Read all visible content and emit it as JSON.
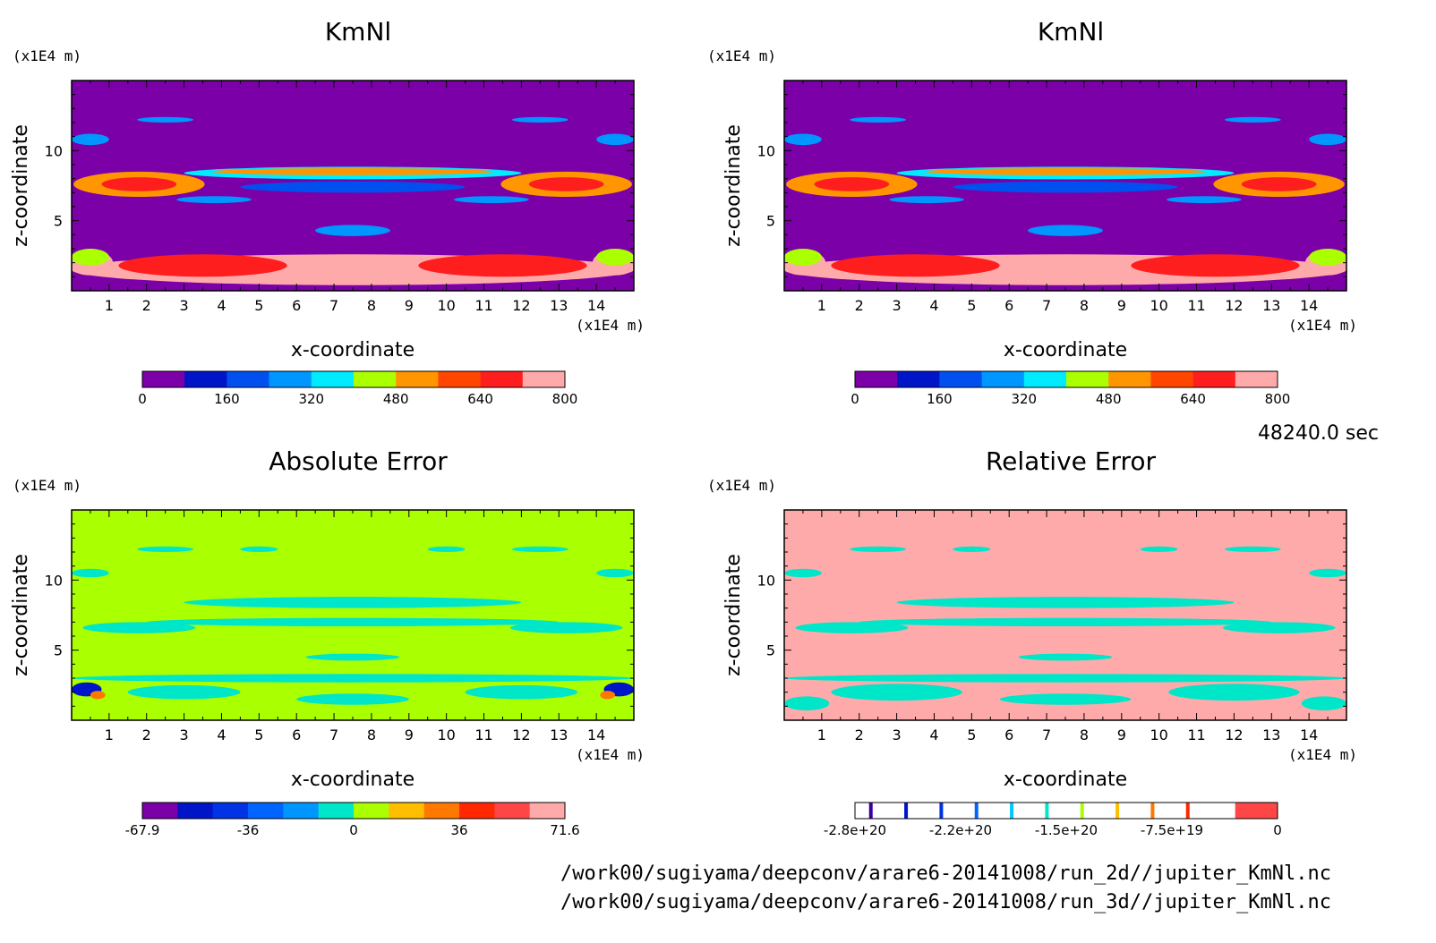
{
  "time_label": "48240.0 sec",
  "file_paths": [
    "/work00/sugiyama/deepconv/arare6-20141008/run_2d//jupiter_KmNl.nc",
    "/work00/sugiyama/deepconv/arare6-20141008/run_3d//jupiter_KmNl.nc"
  ],
  "chart_data": [
    {
      "type": "heatmap",
      "title": "KmNl",
      "xlabel": "x-coordinate",
      "ylabel": "z-coordinate",
      "x_unit": "(x1E4 m)",
      "y_unit": "(x1E4 m)",
      "xlim": [
        0,
        15
      ],
      "ylim": [
        0,
        15
      ],
      "x_ticks": [
        "1",
        "2",
        "3",
        "4",
        "5",
        "6",
        "7",
        "8",
        "9",
        "10",
        "11",
        "12",
        "13",
        "14"
      ],
      "y_ticks": [
        "5",
        "10"
      ],
      "background_color": "#7b00a8",
      "colorbar": {
        "colors": [
          "#7b00a8",
          "#0014c8",
          "#0050f0",
          "#0096ff",
          "#00ebff",
          "#aaff00",
          "#ff9600",
          "#ff4600",
          "#ff1e1e",
          "#ffaaaa"
        ],
        "tick_labels": [
          "0",
          "160",
          "320",
          "480",
          "640",
          "800"
        ]
      },
      "features": [
        {
          "x": 0.5,
          "y": 2.0,
          "w": 1.2,
          "h": 1.8,
          "level": 9
        },
        {
          "x": 14.5,
          "y": 2.0,
          "w": 1.2,
          "h": 1.8,
          "level": 9
        },
        {
          "x": 7.5,
          "y": 1.5,
          "w": 15,
          "h": 2.2,
          "level": 9
        },
        {
          "x": 3.5,
          "y": 1.8,
          "w": 4.5,
          "h": 1.6,
          "level": 8
        },
        {
          "x": 11.5,
          "y": 1.8,
          "w": 4.5,
          "h": 1.6,
          "level": 8
        },
        {
          "x": 0.5,
          "y": 2.4,
          "w": 1.0,
          "h": 1.2,
          "level": 5
        },
        {
          "x": 14.5,
          "y": 2.4,
          "w": 1.0,
          "h": 1.2,
          "level": 5
        },
        {
          "x": 1.8,
          "y": 7.6,
          "w": 3.5,
          "h": 1.8,
          "level": 6
        },
        {
          "x": 13.2,
          "y": 7.6,
          "w": 3.5,
          "h": 1.8,
          "level": 6
        },
        {
          "x": 1.8,
          "y": 7.6,
          "w": 2.0,
          "h": 1.0,
          "level": 8
        },
        {
          "x": 13.2,
          "y": 7.6,
          "w": 2.0,
          "h": 1.0,
          "level": 8
        },
        {
          "x": 7.5,
          "y": 8.4,
          "w": 9.0,
          "h": 0.9,
          "level": 4
        },
        {
          "x": 7.5,
          "y": 8.5,
          "w": 7.5,
          "h": 0.5,
          "level": 6
        },
        {
          "x": 7.5,
          "y": 7.4,
          "w": 6.0,
          "h": 0.8,
          "level": 2
        },
        {
          "x": 7.5,
          "y": 4.3,
          "w": 2.0,
          "h": 0.8,
          "level": 3
        },
        {
          "x": 3.8,
          "y": 6.5,
          "w": 2.0,
          "h": 0.5,
          "level": 3
        },
        {
          "x": 11.2,
          "y": 6.5,
          "w": 2.0,
          "h": 0.5,
          "level": 3
        },
        {
          "x": 2.5,
          "y": 12.2,
          "w": 1.5,
          "h": 0.4,
          "level": 3
        },
        {
          "x": 12.5,
          "y": 12.2,
          "w": 1.5,
          "h": 0.4,
          "level": 3
        },
        {
          "x": 0.5,
          "y": 10.8,
          "w": 1.0,
          "h": 0.8,
          "level": 3
        },
        {
          "x": 14.5,
          "y": 10.8,
          "w": 1.0,
          "h": 0.8,
          "level": 3
        }
      ]
    },
    {
      "type": "heatmap",
      "title": "KmNl",
      "xlabel": "x-coordinate",
      "ylabel": "z-coordinate",
      "x_unit": "(x1E4 m)",
      "y_unit": "(x1E4 m)",
      "xlim": [
        0,
        15
      ],
      "ylim": [
        0,
        15
      ],
      "x_ticks": [
        "1",
        "2",
        "3",
        "4",
        "5",
        "6",
        "7",
        "8",
        "9",
        "10",
        "11",
        "12",
        "13",
        "14"
      ],
      "y_ticks": [
        "5",
        "10"
      ],
      "background_color": "#7b00a8",
      "colorbar": {
        "colors": [
          "#7b00a8",
          "#0014c8",
          "#0050f0",
          "#0096ff",
          "#00ebff",
          "#aaff00",
          "#ff9600",
          "#ff4600",
          "#ff1e1e",
          "#ffaaaa"
        ],
        "tick_labels": [
          "0",
          "160",
          "320",
          "480",
          "640",
          "800"
        ]
      },
      "features": [
        {
          "x": 0.5,
          "y": 2.0,
          "w": 1.2,
          "h": 1.8,
          "level": 9
        },
        {
          "x": 14.5,
          "y": 2.0,
          "w": 1.2,
          "h": 1.8,
          "level": 9
        },
        {
          "x": 7.5,
          "y": 1.5,
          "w": 15,
          "h": 2.2,
          "level": 9
        },
        {
          "x": 3.5,
          "y": 1.8,
          "w": 4.5,
          "h": 1.6,
          "level": 8
        },
        {
          "x": 11.5,
          "y": 1.8,
          "w": 4.5,
          "h": 1.6,
          "level": 8
        },
        {
          "x": 0.5,
          "y": 2.4,
          "w": 1.0,
          "h": 1.2,
          "level": 5
        },
        {
          "x": 14.5,
          "y": 2.4,
          "w": 1.0,
          "h": 1.2,
          "level": 5
        },
        {
          "x": 1.8,
          "y": 7.6,
          "w": 3.5,
          "h": 1.8,
          "level": 6
        },
        {
          "x": 13.2,
          "y": 7.6,
          "w": 3.5,
          "h": 1.8,
          "level": 6
        },
        {
          "x": 1.8,
          "y": 7.6,
          "w": 2.0,
          "h": 1.0,
          "level": 8
        },
        {
          "x": 13.2,
          "y": 7.6,
          "w": 2.0,
          "h": 1.0,
          "level": 8
        },
        {
          "x": 7.5,
          "y": 8.4,
          "w": 9.0,
          "h": 0.9,
          "level": 4
        },
        {
          "x": 7.5,
          "y": 8.5,
          "w": 7.5,
          "h": 0.5,
          "level": 6
        },
        {
          "x": 7.5,
          "y": 7.4,
          "w": 6.0,
          "h": 0.8,
          "level": 2
        },
        {
          "x": 7.5,
          "y": 4.3,
          "w": 2.0,
          "h": 0.8,
          "level": 3
        },
        {
          "x": 3.8,
          "y": 6.5,
          "w": 2.0,
          "h": 0.5,
          "level": 3
        },
        {
          "x": 11.2,
          "y": 6.5,
          "w": 2.0,
          "h": 0.5,
          "level": 3
        },
        {
          "x": 2.5,
          "y": 12.2,
          "w": 1.5,
          "h": 0.4,
          "level": 3
        },
        {
          "x": 12.5,
          "y": 12.2,
          "w": 1.5,
          "h": 0.4,
          "level": 3
        },
        {
          "x": 0.5,
          "y": 10.8,
          "w": 1.0,
          "h": 0.8,
          "level": 3
        },
        {
          "x": 14.5,
          "y": 10.8,
          "w": 1.0,
          "h": 0.8,
          "level": 3
        }
      ]
    },
    {
      "type": "heatmap",
      "title": "Absolute Error",
      "xlabel": "x-coordinate",
      "ylabel": "z-coordinate",
      "x_unit": "(x1E4 m)",
      "y_unit": "(x1E4 m)",
      "xlim": [
        0,
        15
      ],
      "ylim": [
        0,
        15
      ],
      "x_ticks": [
        "1",
        "2",
        "3",
        "4",
        "5",
        "6",
        "7",
        "8",
        "9",
        "10",
        "11",
        "12",
        "13",
        "14"
      ],
      "y_ticks": [
        "5",
        "10"
      ],
      "background_color": "#aaff00",
      "colorbar": {
        "colors": [
          "#7b00a8",
          "#0014c8",
          "#0032e6",
          "#0064ff",
          "#0096ff",
          "#00e6c8",
          "#aaff00",
          "#ffbe00",
          "#ff7800",
          "#ff2800",
          "#ff4646",
          "#ffaaaa"
        ],
        "tick_labels": [
          "-67.9",
          "-36",
          "0",
          "36",
          "71.6"
        ]
      },
      "features": [
        {
          "x": 7.5,
          "y": 3.0,
          "w": 15,
          "h": 0.6,
          "level": 5
        },
        {
          "x": 3.0,
          "y": 2.0,
          "w": 3.0,
          "h": 1.0,
          "level": 5
        },
        {
          "x": 12.0,
          "y": 2.0,
          "w": 3.0,
          "h": 1.0,
          "level": 5
        },
        {
          "x": 7.5,
          "y": 1.5,
          "w": 3.0,
          "h": 0.8,
          "level": 5
        },
        {
          "x": 7.5,
          "y": 8.4,
          "w": 9.0,
          "h": 0.8,
          "level": 5
        },
        {
          "x": 7.5,
          "y": 7.0,
          "w": 11.0,
          "h": 0.6,
          "level": 5
        },
        {
          "x": 1.8,
          "y": 6.6,
          "w": 3.0,
          "h": 0.8,
          "level": 5
        },
        {
          "x": 13.2,
          "y": 6.6,
          "w": 3.0,
          "h": 0.8,
          "level": 5
        },
        {
          "x": 7.5,
          "y": 4.5,
          "w": 2.5,
          "h": 0.5,
          "level": 5
        },
        {
          "x": 2.5,
          "y": 12.2,
          "w": 1.5,
          "h": 0.4,
          "level": 5
        },
        {
          "x": 5.0,
          "y": 12.2,
          "w": 1.0,
          "h": 0.4,
          "level": 5
        },
        {
          "x": 10.0,
          "y": 12.2,
          "w": 1.0,
          "h": 0.4,
          "level": 5
        },
        {
          "x": 12.5,
          "y": 12.2,
          "w": 1.5,
          "h": 0.4,
          "level": 5
        },
        {
          "x": 0.5,
          "y": 10.5,
          "w": 1.0,
          "h": 0.6,
          "level": 5
        },
        {
          "x": 14.5,
          "y": 10.5,
          "w": 1.0,
          "h": 0.6,
          "level": 5
        },
        {
          "x": 0.4,
          "y": 2.2,
          "w": 0.8,
          "h": 1.0,
          "level": 1
        },
        {
          "x": 14.6,
          "y": 2.2,
          "w": 0.8,
          "h": 1.0,
          "level": 1
        },
        {
          "x": 0.7,
          "y": 1.8,
          "w": 0.4,
          "h": 0.6,
          "level": 8
        },
        {
          "x": 14.3,
          "y": 1.8,
          "w": 0.4,
          "h": 0.6,
          "level": 8
        }
      ]
    },
    {
      "type": "heatmap",
      "title": "Relative Error",
      "xlabel": "x-coordinate",
      "ylabel": "z-coordinate",
      "x_unit": "(x1E4 m)",
      "y_unit": "(x1E4 m)",
      "xlim": [
        0,
        15
      ],
      "ylim": [
        0,
        15
      ],
      "x_ticks": [
        "1",
        "2",
        "3",
        "4",
        "5",
        "6",
        "7",
        "8",
        "9",
        "10",
        "11",
        "12",
        "13",
        "14"
      ],
      "y_ticks": [
        "5",
        "10"
      ],
      "background_color": "#ffaaaa",
      "colorbar": {
        "type": "discrete-lines",
        "colors": [
          "#ffffff",
          "#3c00a0",
          "#ffffff",
          "#0014c8",
          "#ffffff",
          "#0032e6",
          "#ffffff",
          "#0064ff",
          "#ffffff",
          "#00c8ff",
          "#ffffff",
          "#00e6c8",
          "#ffffff",
          "#aaff00",
          "#ffffff",
          "#ffbe00",
          "#ffffff",
          "#ff7800",
          "#ffffff",
          "#ff2800",
          "#ffffff",
          "#ff4646"
        ],
        "tick_labels": [
          "-2.8e+20",
          "-2.2e+20",
          "-1.5e+20",
          "-7.5e+19",
          "0"
        ]
      },
      "features": [
        {
          "x": 7.5,
          "y": 3.0,
          "w": 15,
          "h": 0.6,
          "level": 11
        },
        {
          "x": 3.0,
          "y": 2.0,
          "w": 3.5,
          "h": 1.2,
          "level": 11
        },
        {
          "x": 12.0,
          "y": 2.0,
          "w": 3.5,
          "h": 1.2,
          "level": 11
        },
        {
          "x": 7.5,
          "y": 1.5,
          "w": 3.5,
          "h": 0.8,
          "level": 11
        },
        {
          "x": 0.6,
          "y": 1.2,
          "w": 1.2,
          "h": 1.0,
          "level": 11
        },
        {
          "x": 14.4,
          "y": 1.2,
          "w": 1.2,
          "h": 1.0,
          "level": 11
        },
        {
          "x": 7.5,
          "y": 8.4,
          "w": 9.0,
          "h": 0.8,
          "level": 11
        },
        {
          "x": 7.5,
          "y": 7.0,
          "w": 11.0,
          "h": 0.6,
          "level": 11
        },
        {
          "x": 1.8,
          "y": 6.6,
          "w": 3.0,
          "h": 0.8,
          "level": 11
        },
        {
          "x": 13.2,
          "y": 6.6,
          "w": 3.0,
          "h": 0.8,
          "level": 11
        },
        {
          "x": 7.5,
          "y": 4.5,
          "w": 2.5,
          "h": 0.5,
          "level": 11
        },
        {
          "x": 2.5,
          "y": 12.2,
          "w": 1.5,
          "h": 0.4,
          "level": 11
        },
        {
          "x": 5.0,
          "y": 12.2,
          "w": 1.0,
          "h": 0.4,
          "level": 11
        },
        {
          "x": 10.0,
          "y": 12.2,
          "w": 1.0,
          "h": 0.4,
          "level": 11
        },
        {
          "x": 12.5,
          "y": 12.2,
          "w": 1.5,
          "h": 0.4,
          "level": 11
        },
        {
          "x": 0.5,
          "y": 10.5,
          "w": 1.0,
          "h": 0.6,
          "level": 11
        },
        {
          "x": 14.5,
          "y": 10.5,
          "w": 1.0,
          "h": 0.6,
          "level": 11
        }
      ]
    }
  ]
}
